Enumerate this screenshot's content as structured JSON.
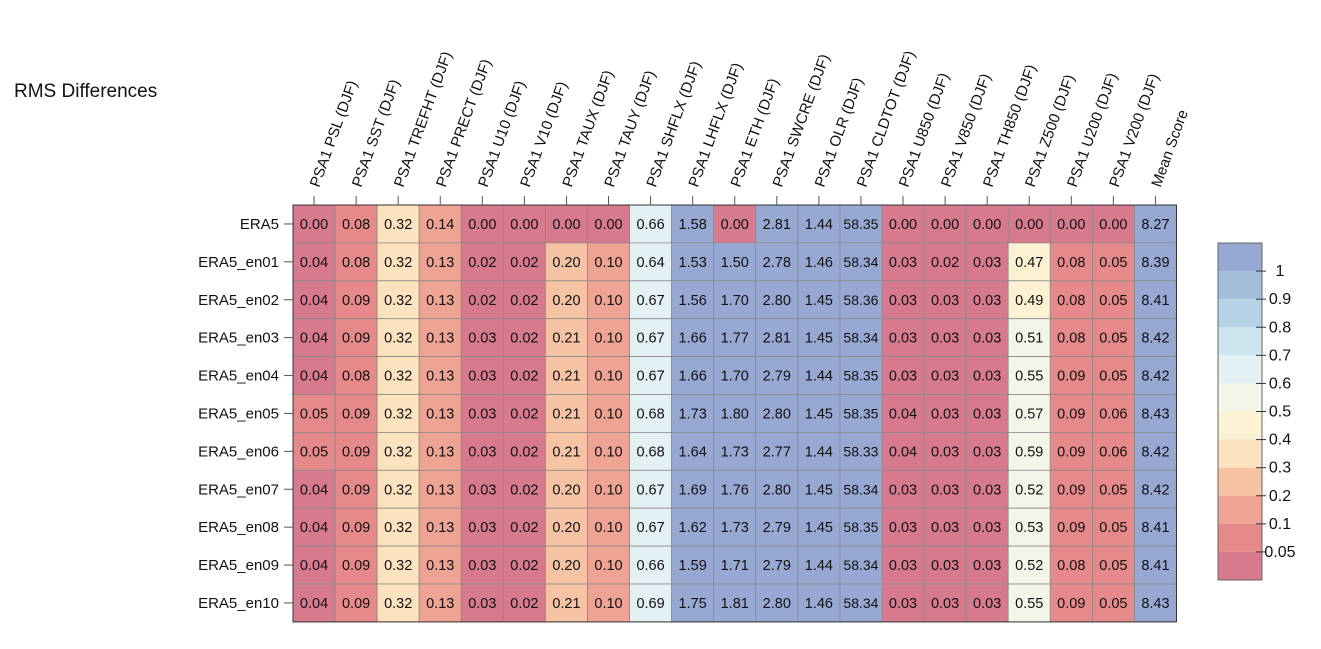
{
  "chart_data": {
    "type": "heatmap",
    "title": "RMS Differences",
    "columns": [
      "PSA1 PSL (DJF)",
      "PSA1 SST (DJF)",
      "PSA1 TREFHT (DJF)",
      "PSA1 PRECT (DJF)",
      "PSA1 U10 (DJF)",
      "PSA1 V10 (DJF)",
      "PSA1 TAUX (DJF)",
      "PSA1 TAUY (DJF)",
      "PSA1 SHFLX (DJF)",
      "PSA1 LHFLX (DJF)",
      "PSA1 ETH (DJF)",
      "PSA1 SWCRE (DJF)",
      "PSA1 OLR (DJF)",
      "PSA1 CLDTOT (DJF)",
      "PSA1 U850 (DJF)",
      "PSA1 V850 (DJF)",
      "PSA1 TH850 (DJF)",
      "PSA1 Z500 (DJF)",
      "PSA1 U200 (DJF)",
      "PSA1 V200 (DJF)",
      "Mean Score"
    ],
    "rows": [
      "ERA5",
      "ERA5_en01",
      "ERA5_en02",
      "ERA5_en03",
      "ERA5_en04",
      "ERA5_en05",
      "ERA5_en06",
      "ERA5_en07",
      "ERA5_en08",
      "ERA5_en09",
      "ERA5_en10"
    ],
    "values": [
      [
        0.0,
        0.08,
        0.32,
        0.14,
        0.0,
        0.0,
        0.0,
        0.0,
        0.66,
        1.58,
        0.0,
        2.81,
        1.44,
        58.35,
        0.0,
        0.0,
        0.0,
        0.0,
        0.0,
        0.0,
        8.27
      ],
      [
        0.04,
        0.08,
        0.32,
        0.13,
        0.02,
        0.02,
        0.2,
        0.1,
        0.64,
        1.53,
        1.5,
        2.78,
        1.46,
        58.34,
        0.03,
        0.02,
        0.03,
        0.47,
        0.08,
        0.05,
        8.39
      ],
      [
        0.04,
        0.09,
        0.32,
        0.13,
        0.02,
        0.02,
        0.2,
        0.1,
        0.67,
        1.56,
        1.7,
        2.8,
        1.45,
        58.36,
        0.03,
        0.03,
        0.03,
        0.49,
        0.08,
        0.05,
        8.41
      ],
      [
        0.04,
        0.09,
        0.32,
        0.13,
        0.03,
        0.02,
        0.21,
        0.1,
        0.67,
        1.66,
        1.77,
        2.81,
        1.45,
        58.34,
        0.03,
        0.03,
        0.03,
        0.51,
        0.08,
        0.05,
        8.42
      ],
      [
        0.04,
        0.08,
        0.32,
        0.13,
        0.03,
        0.02,
        0.21,
        0.1,
        0.67,
        1.66,
        1.7,
        2.79,
        1.44,
        58.35,
        0.03,
        0.03,
        0.03,
        0.55,
        0.09,
        0.05,
        8.42
      ],
      [
        0.05,
        0.09,
        0.32,
        0.13,
        0.03,
        0.02,
        0.21,
        0.1,
        0.68,
        1.73,
        1.8,
        2.8,
        1.45,
        58.35,
        0.04,
        0.03,
        0.03,
        0.57,
        0.09,
        0.06,
        8.43
      ],
      [
        0.05,
        0.09,
        0.32,
        0.13,
        0.03,
        0.02,
        0.21,
        0.1,
        0.68,
        1.64,
        1.73,
        2.77,
        1.44,
        58.33,
        0.04,
        0.03,
        0.03,
        0.59,
        0.09,
        0.06,
        8.42
      ],
      [
        0.04,
        0.09,
        0.32,
        0.13,
        0.03,
        0.02,
        0.2,
        0.1,
        0.67,
        1.69,
        1.76,
        2.8,
        1.45,
        58.34,
        0.03,
        0.03,
        0.03,
        0.52,
        0.09,
        0.05,
        8.42
      ],
      [
        0.04,
        0.09,
        0.32,
        0.13,
        0.03,
        0.02,
        0.2,
        0.1,
        0.67,
        1.62,
        1.73,
        2.79,
        1.45,
        58.35,
        0.03,
        0.03,
        0.03,
        0.53,
        0.09,
        0.05,
        8.41
      ],
      [
        0.04,
        0.09,
        0.32,
        0.13,
        0.03,
        0.02,
        0.2,
        0.1,
        0.66,
        1.59,
        1.71,
        2.79,
        1.44,
        58.34,
        0.03,
        0.03,
        0.03,
        0.52,
        0.08,
        0.05,
        8.41
      ],
      [
        0.04,
        0.09,
        0.32,
        0.13,
        0.03,
        0.02,
        0.21,
        0.1,
        0.69,
        1.75,
        1.81,
        2.8,
        1.46,
        58.34,
        0.03,
        0.03,
        0.03,
        0.55,
        0.09,
        0.05,
        8.43
      ]
    ],
    "value_labels": [
      [
        "0.00",
        "0.08",
        "0.32",
        "0.14",
        "0.00",
        "0.00",
        "0.00",
        "0.00",
        "0.66",
        "1.58",
        "0.00",
        "2.81",
        "1.44",
        "58.35",
        "0.00",
        "0.00",
        "0.00",
        "0.00",
        "0.00",
        "0.00",
        "8.27"
      ],
      [
        "0.04",
        "0.08",
        "0.32",
        "0.13",
        "0.02",
        "0.02",
        "0.20",
        "0.10",
        "0.64",
        "1.53",
        "1.50",
        "2.78",
        "1.46",
        "58.34",
        "0.03",
        "0.02",
        "0.03",
        "0.47",
        "0.08",
        "0.05",
        "8.39"
      ],
      [
        "0.04",
        "0.09",
        "0.32",
        "0.13",
        "0.02",
        "0.02",
        "0.20",
        "0.10",
        "0.67",
        "1.56",
        "1.70",
        "2.80",
        "1.45",
        "58.36",
        "0.03",
        "0.03",
        "0.03",
        "0.49",
        "0.08",
        "0.05",
        "8.41"
      ],
      [
        "0.04",
        "0.09",
        "0.32",
        "0.13",
        "0.03",
        "0.02",
        "0.21",
        "0.10",
        "0.67",
        "1.66",
        "1.77",
        "2.81",
        "1.45",
        "58.34",
        "0.03",
        "0.03",
        "0.03",
        "0.51",
        "0.08",
        "0.05",
        "8.42"
      ],
      [
        "0.04",
        "0.08",
        "0.32",
        "0.13",
        "0.03",
        "0.02",
        "0.21",
        "0.10",
        "0.67",
        "1.66",
        "1.70",
        "2.79",
        "1.44",
        "58.35",
        "0.03",
        "0.03",
        "0.03",
        "0.55",
        "0.09",
        "0.05",
        "8.42"
      ],
      [
        "0.05",
        "0.09",
        "0.32",
        "0.13",
        "0.03",
        "0.02",
        "0.21",
        "0.10",
        "0.68",
        "1.73",
        "1.80",
        "2.80",
        "1.45",
        "58.35",
        "0.04",
        "0.03",
        "0.03",
        "0.57",
        "0.09",
        "0.06",
        "8.43"
      ],
      [
        "0.05",
        "0.09",
        "0.32",
        "0.13",
        "0.03",
        "0.02",
        "0.21",
        "0.10",
        "0.68",
        "1.64",
        "1.73",
        "2.77",
        "1.44",
        "58.33",
        "0.04",
        "0.03",
        "0.03",
        "0.59",
        "0.09",
        "0.06",
        "8.42"
      ],
      [
        "0.04",
        "0.09",
        "0.32",
        "0.13",
        "0.03",
        "0.02",
        "0.20",
        "0.10",
        "0.67",
        "1.69",
        "1.76",
        "2.80",
        "1.45",
        "58.34",
        "0.03",
        "0.03",
        "0.03",
        "0.52",
        "0.09",
        "0.05",
        "8.42"
      ],
      [
        "0.04",
        "0.09",
        "0.32",
        "0.13",
        "0.03",
        "0.02",
        "0.20",
        "0.10",
        "0.67",
        "1.62",
        "1.73",
        "2.79",
        "1.45",
        "58.35",
        "0.03",
        "0.03",
        "0.03",
        "0.53",
        "0.09",
        "0.05",
        "8.41"
      ],
      [
        "0.04",
        "0.09",
        "0.32",
        "0.13",
        "0.03",
        "0.02",
        "0.20",
        "0.10",
        "0.66",
        "1.59",
        "1.71",
        "2.79",
        "1.44",
        "58.34",
        "0.03",
        "0.03",
        "0.03",
        "0.52",
        "0.08",
        "0.05",
        "8.41"
      ],
      [
        "0.04",
        "0.09",
        "0.32",
        "0.13",
        "0.03",
        "0.02",
        "0.21",
        "0.10",
        "0.69",
        "1.75",
        "1.81",
        "2.80",
        "1.46",
        "58.34",
        "0.03",
        "0.03",
        "0.03",
        "0.55",
        "0.09",
        "0.05",
        "8.43"
      ]
    ],
    "color_scale": {
      "boundaries": [
        0,
        0.05,
        0.1,
        0.2,
        0.3,
        0.4,
        0.5,
        0.6,
        0.7,
        0.8,
        0.9,
        1,
        100
      ],
      "colors": [
        "#d77a8e",
        "#e6898a",
        "#eea394",
        "#f6c4a4",
        "#fde2bf",
        "#fcf2d3",
        "#f4f5e9",
        "#e3f1f4",
        "#cce5ee",
        "#b5d2e6",
        "#a4bedc",
        "#97a9d3"
      ],
      "tick_labels": [
        "0.05",
        "0.1",
        "0.2",
        "0.3",
        "0.4",
        "0.5",
        "0.6",
        "0.7",
        "0.8",
        "0.9",
        "1"
      ],
      "legend_position": "right"
    },
    "grid": true
  }
}
